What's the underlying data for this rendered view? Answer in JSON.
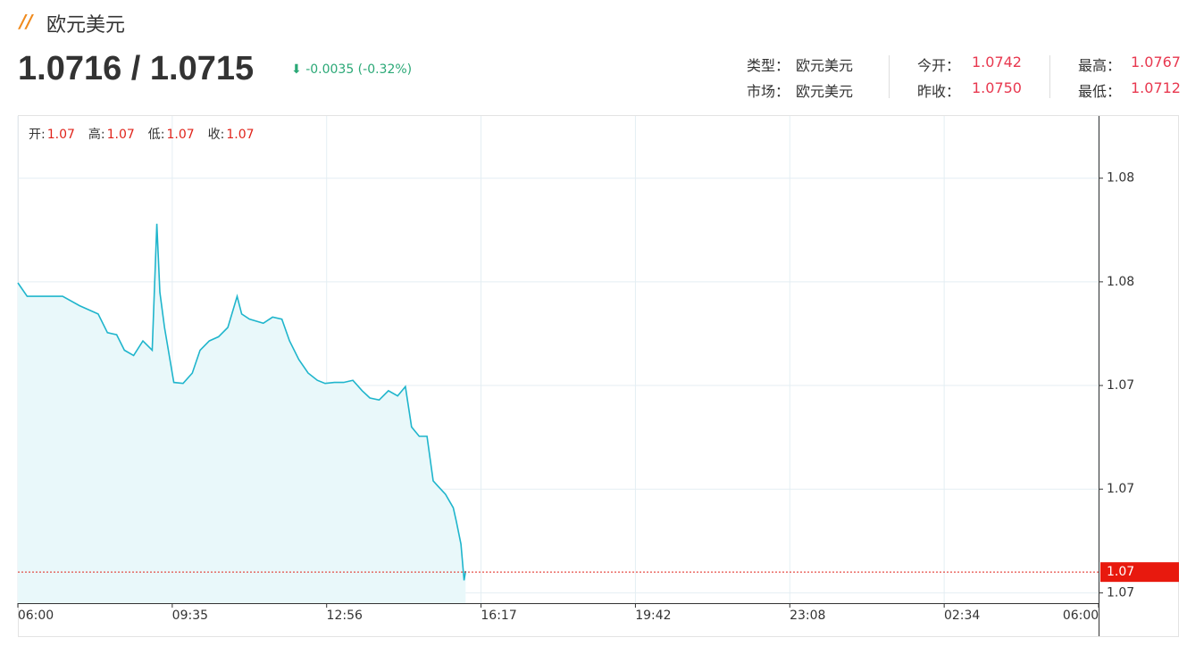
{
  "header": {
    "title": "欧元美元",
    "price": "1.0716 / 1.0715",
    "change": "-0.0035 (-0.32%)",
    "info": [
      [
        {
          "label": "类型：",
          "value": "欧元美元"
        },
        {
          "label": "今开：",
          "value": "1.0742"
        },
        {
          "label": "最高：",
          "value": "1.0767"
        }
      ],
      [
        {
          "label": "市场：",
          "value": "欧元美元"
        },
        {
          "label": "昨收：",
          "value": "1.0750"
        },
        {
          "label": "最低：",
          "value": "1.0712"
        }
      ]
    ]
  },
  "chart_data": {
    "type": "line",
    "ohlc_legend": [
      {
        "label": "开:",
        "value": "1.07"
      },
      {
        "label": "高:",
        "value": "1.07"
      },
      {
        "label": "低:",
        "value": "1.07"
      },
      {
        "label": "收:",
        "value": "1.07"
      }
    ],
    "xlim": [
      0,
      7
    ],
    "xticks": [
      {
        "value": 0,
        "label": "06:00"
      },
      {
        "value": 1,
        "label": "09:35"
      },
      {
        "value": 2,
        "label": "12:56"
      },
      {
        "value": 3,
        "label": "16:17"
      },
      {
        "value": 4,
        "label": "19:42"
      },
      {
        "value": 5,
        "label": "23:08"
      },
      {
        "value": 6,
        "label": "02:34"
      },
      {
        "value": 7,
        "label": "06:00"
      }
    ],
    "ylim": [
      1.0719,
      1.0766
    ],
    "yticks": [
      {
        "value": 1.076,
        "label": "1.08"
      },
      {
        "value": 1.075,
        "label": "1.08"
      },
      {
        "value": 1.074,
        "label": "1.07"
      },
      {
        "value": 1.073,
        "label": "1.07"
      },
      {
        "value": 1.072,
        "label": "1.07"
      }
    ],
    "grid": true,
    "last_price": {
      "value": 1.0722,
      "label": "1.07"
    },
    "series": [
      {
        "color": "#1fb5cc",
        "x": [
          0,
          0.06,
          0.17,
          0.29,
          0.4,
          0.52,
          0.58,
          0.64,
          0.69,
          0.75,
          0.81,
          0.87,
          0.9,
          0.92,
          0.95,
          1.01,
          1.07,
          1.13,
          1.18,
          1.24,
          1.3,
          1.36,
          1.42,
          1.45,
          1.5,
          1.59,
          1.65,
          1.71,
          1.76,
          1.82,
          1.88,
          1.94,
          1.99,
          2.05,
          2.11,
          2.17,
          2.23,
          2.28,
          2.34,
          2.4,
          2.46,
          2.51,
          2.55,
          2.6,
          2.65,
          2.69,
          2.72,
          2.77,
          2.82,
          2.84,
          2.87,
          2.89,
          2.9
        ],
        "values": [
          1.07499,
          1.07486,
          1.07486,
          1.07486,
          1.07477,
          1.07469,
          1.07451,
          1.07449,
          1.07434,
          1.07429,
          1.07443,
          1.07434,
          1.07556,
          1.0749,
          1.07456,
          1.07403,
          1.07402,
          1.07412,
          1.07434,
          1.07443,
          1.07447,
          1.07456,
          1.07486,
          1.07469,
          1.07464,
          1.0746,
          1.07466,
          1.07464,
          1.07443,
          1.07425,
          1.07412,
          1.07405,
          1.07402,
          1.07403,
          1.07403,
          1.07405,
          1.07395,
          1.07388,
          1.07386,
          1.07395,
          1.0739,
          1.07399,
          1.0736,
          1.07351,
          1.07351,
          1.07308,
          1.07303,
          1.07295,
          1.07282,
          1.07269,
          1.07247,
          1.07212,
          1.07221
        ]
      }
    ]
  }
}
